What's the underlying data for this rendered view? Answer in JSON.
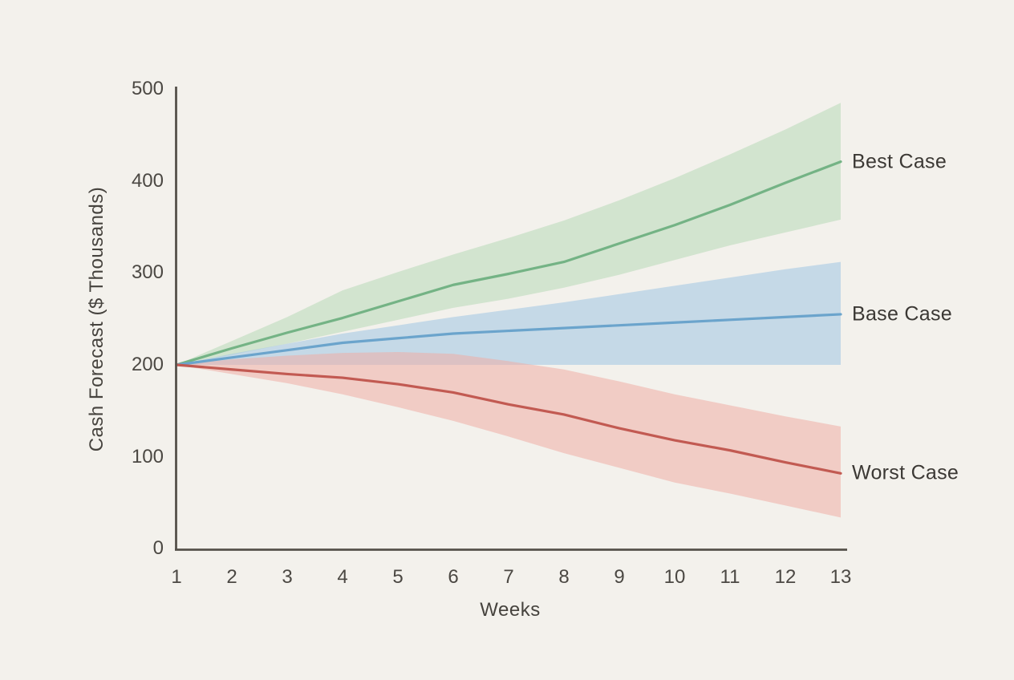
{
  "chart_data": {
    "type": "line",
    "title": "",
    "xlabel": "Weeks",
    "ylabel": "Cash Forecast ($ Thousands)",
    "x": [
      1,
      2,
      3,
      4,
      5,
      6,
      7,
      8,
      9,
      10,
      11,
      12,
      13
    ],
    "x_tick_labels": [
      "1",
      "2",
      "3",
      "4",
      "5",
      "6",
      "7",
      "8",
      "9",
      "10",
      "11",
      "12",
      "13"
    ],
    "y_tick_labels": [
      "0",
      "100",
      "200",
      "300",
      "400",
      "500"
    ],
    "y_tick_values": [
      0,
      100,
      200,
      300,
      400,
      500
    ],
    "xlim": [
      1,
      13
    ],
    "ylim": [
      0,
      500
    ],
    "grid": false,
    "legend_position": "end-of-line-labels-right",
    "axis_color": "#55514a",
    "background_color": "#f3f1ec",
    "series": [
      {
        "name": "Best Case",
        "line_color": "#74b385",
        "band_color": "#b2d8b2",
        "band_opacity": 0.5,
        "values": [
          200,
          218,
          235,
          251,
          269,
          287,
          299,
          312,
          332,
          352,
          374,
          398,
          421
        ],
        "band_hi": [
          200,
          226,
          252,
          281,
          301,
          320,
          338,
          357,
          379,
          403,
          429,
          456,
          485
        ],
        "band_lo": [
          200,
          211,
          223,
          236,
          249,
          262,
          272,
          284,
          298,
          314,
          330,
          344,
          358
        ]
      },
      {
        "name": "Base Case",
        "line_color": "#6ba4cc",
        "band_color": "#9fc4e4",
        "band_opacity": 0.55,
        "values": [
          200,
          208,
          216,
          224,
          229,
          234,
          237,
          240,
          243,
          246,
          249,
          252,
          255
        ],
        "band_hi": [
          200,
          212,
          223,
          234,
          243,
          252,
          260,
          268,
          277,
          286,
          295,
          304,
          312
        ],
        "band_lo": [
          200,
          200,
          200,
          200,
          200,
          200,
          200,
          200,
          200,
          200,
          200,
          200,
          200
        ]
      },
      {
        "name": "Worst Case",
        "line_color": "#c25a52",
        "band_color": "#eeada6",
        "band_opacity": 0.55,
        "values": [
          200,
          195,
          190,
          186,
          179,
          170,
          157,
          146,
          131,
          118,
          107,
          94,
          82
        ],
        "band_hi": [
          200,
          206,
          210,
          213,
          214,
          212,
          204,
          195,
          182,
          168,
          156,
          144,
          133
        ],
        "band_lo": [
          200,
          190,
          180,
          168,
          154,
          139,
          122,
          104,
          88,
          72,
          60,
          47,
          34
        ]
      }
    ]
  }
}
